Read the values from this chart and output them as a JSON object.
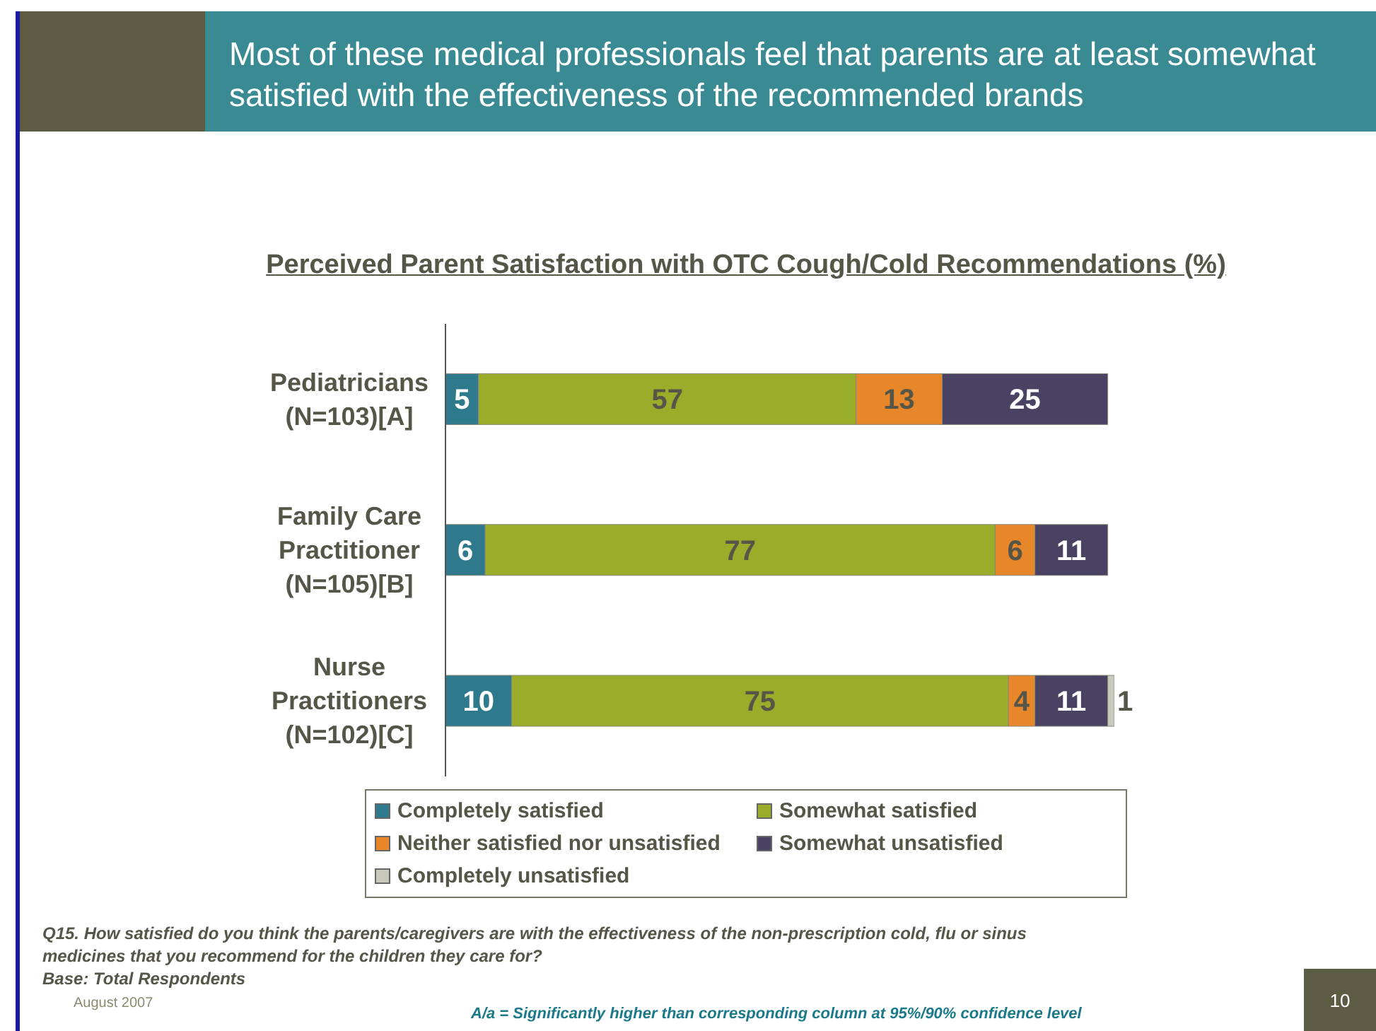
{
  "chart_data": {
    "type": "bar",
    "orientation": "horizontal",
    "stacked": true,
    "title": "Most of these medical professionals feel that parents are at least somewhat satisfied with the effectiveness of the recommended brands",
    "subtitle": "Perceived Parent Satisfaction with OTC Cough/Cold Recommendations (%)",
    "categories": [
      "Pediatricians\n(N=103)[A]",
      "Family Care\nPractitioner\n(N=105)[B]",
      "Nurse\nPractitioners\n(N=102)[C]"
    ],
    "series": [
      {
        "name": "Completely satisfied",
        "color": "#2e7a8c",
        "values": [
          5,
          6,
          10
        ],
        "value_labels": [
          "5",
          "6",
          "10"
        ]
      },
      {
        "name": "Somewhat satisfied",
        "color": "#9aad2a",
        "values": [
          57,
          77,
          75
        ],
        "value_labels": [
          "57",
          "77",
          "75"
        ]
      },
      {
        "name": "Neither satisfied nor unsatisfied",
        "color": "#e8862a",
        "values": [
          13,
          6,
          4
        ],
        "value_labels": [
          "13",
          "6",
          "4"
        ]
      },
      {
        "name": "Somewhat unsatisfied",
        "color": "#4a4263",
        "values": [
          25,
          11,
          11
        ],
        "value_labels": [
          "25",
          "11",
          "11"
        ]
      },
      {
        "name": "Completely unsatisfied",
        "color": "#c8c8bc",
        "values": [
          0,
          0,
          1
        ],
        "value_labels": [
          null,
          null,
          "1"
        ]
      }
    ],
    "legend": "bottom",
    "tick_labels": "y",
    "annotations": [
      "Q15. How satisfied do you think the parents/caregivers are with the effectiveness of the non-prescription cold, flu or sinus medicines that you recommend for the children they care for?",
      "Base: Total Respondents",
      "August 2007",
      "A/a = Significantly higher than corresponding column at 95%/90% confidence level",
      "10"
    ]
  }
}
